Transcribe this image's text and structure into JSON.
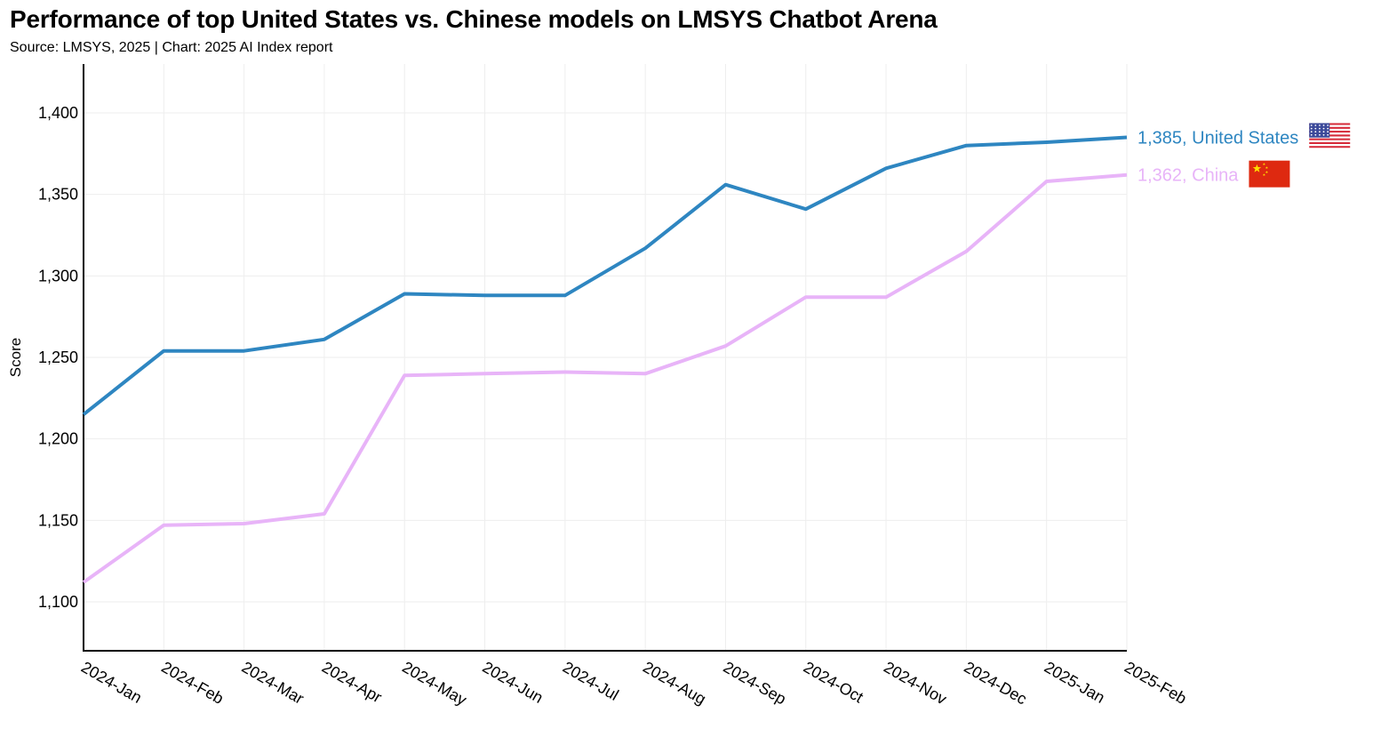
{
  "title": "Performance of top United States vs. Chinese models on LMSYS Chatbot Arena",
  "subtitle": "Source: LMSYS, 2025 | Chart: 2025 AI Index report",
  "chart_data": {
    "type": "line",
    "title": "Performance of top United States vs. Chinese models on LMSYS Chatbot Arena",
    "subtitle": "Source: LMSYS, 2025 | Chart: 2025 AI Index report",
    "xlabel": "",
    "ylabel": "Score",
    "ylim": [
      1070,
      1430
    ],
    "yticks": [
      1100,
      1150,
      1200,
      1250,
      1300,
      1350,
      1400
    ],
    "ytick_labels": [
      "1,100",
      "1,150",
      "1,200",
      "1,250",
      "1,300",
      "1,350",
      "1,400"
    ],
    "grid": true,
    "x": [
      "2024-Jan",
      "2024-Feb",
      "2024-Mar",
      "2024-Apr",
      "2024-May",
      "2024-Jun",
      "2024-Jul",
      "2024-Aug",
      "2024-Sep",
      "2024-Oct",
      "2024-Nov",
      "2024-Dec",
      "2025-Jan",
      "2025-Feb"
    ],
    "series": [
      {
        "name": "United States",
        "color": "#2e86c1",
        "end_label": "1,385, United States",
        "flag": "us-flag-icon",
        "values": [
          1215,
          1254,
          1254,
          1261,
          1289,
          1288,
          1288,
          1317,
          1356,
          1341,
          1366,
          1380,
          1382,
          1385
        ]
      },
      {
        "name": "China",
        "color": "#e8b4f8",
        "end_label": "1,362, China",
        "flag": "china-flag-icon",
        "values": [
          1112,
          1147,
          1148,
          1154,
          1239,
          1240,
          1241,
          1240,
          1257,
          1287,
          1287,
          1315,
          1358,
          1362
        ]
      }
    ]
  }
}
